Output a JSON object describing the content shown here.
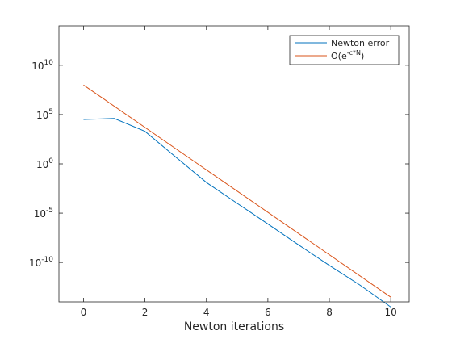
{
  "chart_data": {
    "type": "line",
    "title": "",
    "xlabel": "Newton iterations",
    "ylabel": "",
    "xlim": [
      -0.8,
      10.6
    ],
    "ylim_log10": [
      -14,
      14
    ],
    "yscale": "log",
    "grid": false,
    "legend_position": "top-right",
    "x_ticks": [
      0,
      2,
      4,
      6,
      8,
      10
    ],
    "y_ticks": [
      {
        "exp": -10,
        "base": "10",
        "sup": "-10"
      },
      {
        "exp": -5,
        "base": "10",
        "sup": "-5"
      },
      {
        "exp": 0,
        "base": "10",
        "sup": "0"
      },
      {
        "exp": 5,
        "base": "10",
        "sup": "5"
      },
      {
        "exp": 10,
        "base": "10",
        "sup": "10"
      }
    ],
    "series": [
      {
        "name": "Newton error",
        "color": "#0072BD",
        "x": [
          0,
          1,
          2,
          3,
          4,
          5,
          6,
          7,
          8,
          9,
          10
        ],
        "y": [
          32000.0,
          40000.0,
          2000.0,
          5.0,
          0.013,
          0.0001,
          8e-07,
          6e-09,
          5e-11,
          5e-13,
          3e-15
        ]
      },
      {
        "name_prefix": "O(e",
        "name_sup": "-c*N",
        "name_suffix": ")",
        "color": "#D95319",
        "x": [
          0,
          10
        ],
        "y": [
          100000000.0,
          3e-14
        ]
      }
    ]
  }
}
